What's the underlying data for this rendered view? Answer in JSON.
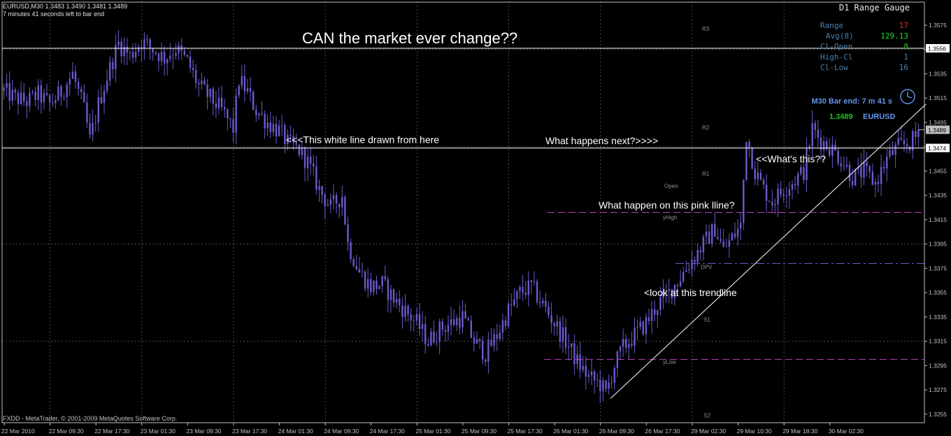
{
  "header": {
    "symbol_line": "EURUSD,M30  1.3483 1.3490 1.3481 1.3489",
    "timer_line": "7 minutes 41 seconds left to bar end"
  },
  "footer": {
    "copyright": "FXDD - MetaTrader, © 2001-2009 MetaQuotes Software Corp."
  },
  "colors": {
    "background": "#000000",
    "candle": "#6a5acd",
    "grid": "#c0c0c0",
    "axis": "#c0c0c0",
    "white_line": "#ffffff",
    "pink_line": "#c040c0",
    "dpv_line": "#6a5acd",
    "price_label_bg": "#ffffff",
    "current_price_bg": "#c0c0c0"
  },
  "gauge": {
    "title": "D1 Range Gauge",
    "rows": [
      {
        "label": "Range",
        "value": "17",
        "color": "#ff2020"
      },
      {
        "label": "Avg(8)",
        "value": "129.13",
        "color": "#20e020"
      },
      {
        "label": "Cl-Open",
        "value": "8",
        "color": "#20d020"
      },
      {
        "label": "High-Cl",
        "value": "1",
        "color": "#4682b4"
      },
      {
        "label": "Cl-Low",
        "value": "16",
        "color": "#4682b4"
      }
    ]
  },
  "bar_info": {
    "bar_end": "M30 Bar end: 7 m 41 s",
    "price": "1.3489",
    "symbol": "EURUSD"
  },
  "chart_data": {
    "type": "candlestick",
    "ylim": [
      1.3248,
      1.3594
    ],
    "y_ticks": [
      1.3575,
      1.3555,
      1.3535,
      1.3515,
      1.3495,
      1.3475,
      1.3455,
      1.3435,
      1.3415,
      1.3395,
      1.3375,
      1.3355,
      1.3335,
      1.3315,
      1.3295,
      1.3275,
      1.3255
    ],
    "x_ticks": [
      "22 Mar 2010",
      "22 Mar 09:30",
      "22 Mar 17:30",
      "23 Mar 01:30",
      "23 Mar 09:30",
      "23 Mar 17:30",
      "24 Mar 01:30",
      "24 Mar 09:30",
      "24 Mar 17:30",
      "25 Mar 01:30",
      "25 Mar 09:30",
      "25 Mar 17:30",
      "26 Mar 01:30",
      "26 Mar 09:30",
      "26 Mar 17:30",
      "29 Mar 02:30",
      "29 Mar 10:30",
      "29 Mar 18:30",
      "30 Mar 02:30"
    ],
    "price_path": [
      [
        0,
        1.3521
      ],
      [
        4,
        1.3515
      ],
      [
        8,
        1.3512
      ],
      [
        12,
        1.3518
      ],
      [
        16,
        1.351
      ],
      [
        20,
        1.352
      ],
      [
        24,
        1.3535
      ],
      [
        28,
        1.3505
      ],
      [
        30,
        1.348
      ],
      [
        33,
        1.351
      ],
      [
        37,
        1.354
      ],
      [
        40,
        1.356
      ],
      [
        44,
        1.355
      ],
      [
        48,
        1.3562
      ],
      [
        52,
        1.3555
      ],
      [
        56,
        1.3548
      ],
      [
        60,
        1.3556
      ],
      [
        64,
        1.3545
      ],
      [
        68,
        1.3525
      ],
      [
        72,
        1.3515
      ],
      [
        76,
        1.3505
      ],
      [
        80,
        1.349
      ],
      [
        82,
        1.353
      ],
      [
        85,
        1.352
      ],
      [
        88,
        1.3505
      ],
      [
        92,
        1.3495
      ],
      [
        96,
        1.3488
      ],
      [
        99,
        1.3478
      ],
      [
        103,
        1.3472
      ],
      [
        106,
        1.3462
      ],
      [
        110,
        1.344
      ],
      [
        114,
        1.3425
      ],
      [
        118,
        1.3435
      ],
      [
        120,
        1.3395
      ],
      [
        124,
        1.3372
      ],
      [
        128,
        1.336
      ],
      [
        132,
        1.3362
      ],
      [
        136,
        1.335
      ],
      [
        140,
        1.334
      ],
      [
        144,
        1.333
      ],
      [
        148,
        1.3315
      ],
      [
        152,
        1.3325
      ],
      [
        156,
        1.333
      ],
      [
        160,
        1.3335
      ],
      [
        164,
        1.3315
      ],
      [
        168,
        1.3305
      ],
      [
        172,
        1.332
      ],
      [
        176,
        1.334
      ],
      [
        180,
        1.3355
      ],
      [
        184,
        1.336
      ],
      [
        188,
        1.3345
      ],
      [
        192,
        1.333
      ],
      [
        196,
        1.3315
      ],
      [
        200,
        1.3298
      ],
      [
        204,
        1.3285
      ],
      [
        208,
        1.328
      ],
      [
        210,
        1.3272
      ],
      [
        213,
        1.3295
      ],
      [
        216,
        1.331
      ],
      [
        220,
        1.332
      ],
      [
        224,
        1.333
      ],
      [
        228,
        1.3345
      ],
      [
        232,
        1.3355
      ],
      [
        236,
        1.3368
      ],
      [
        240,
        1.3382
      ],
      [
        244,
        1.3395
      ],
      [
        248,
        1.3408
      ],
      [
        251,
        1.339
      ],
      [
        254,
        1.34
      ],
      [
        257,
        1.341
      ],
      [
        259,
        1.3485
      ],
      [
        262,
        1.3455
      ],
      [
        265,
        1.344
      ],
      [
        268,
        1.343
      ],
      [
        272,
        1.344
      ],
      [
        276,
        1.3448
      ],
      [
        279,
        1.3455
      ],
      [
        282,
        1.349
      ],
      [
        285,
        1.348
      ],
      [
        288,
        1.3475
      ],
      [
        292,
        1.3465
      ],
      [
        296,
        1.345
      ],
      [
        300,
        1.3455
      ],
      [
        304,
        1.3445
      ],
      [
        308,
        1.3465
      ],
      [
        312,
        1.3475
      ],
      [
        316,
        1.3478
      ],
      [
        319,
        1.3485
      ]
    ],
    "horizontal_lines": [
      {
        "name": "white-line-upper",
        "price": 1.3556,
        "label": "1.3556",
        "style": "solid",
        "color": "#ffffff"
      },
      {
        "name": "white-line-lower",
        "price": 1.3474,
        "label": "1.3474",
        "style": "solid",
        "color": "#ffffff"
      },
      {
        "name": "pink-line-yhigh",
        "price": 1.3421,
        "style": "dashed",
        "color": "#c040c0"
      },
      {
        "name": "pink-line-ylow",
        "price": 1.33,
        "style": "dashed",
        "color": "#c040c0"
      },
      {
        "name": "dpv-line",
        "price": 1.3379,
        "style": "dashdot",
        "color": "#6a5acd"
      }
    ],
    "current_price": {
      "price": 1.3489,
      "label": "1.3489"
    },
    "trendline": {
      "from": [
        212,
        1.3268
      ],
      "to": [
        322,
        1.351
      ]
    },
    "pivot_labels": [
      {
        "text": "R3",
        "price": 1.3572
      },
      {
        "text": "R2",
        "price": 1.3491
      },
      {
        "text": "R1",
        "price": 1.3453
      },
      {
        "text": "Open",
        "price": 1.3443
      },
      {
        "text": "yHigh",
        "price": 1.3417
      },
      {
        "text": "DPV",
        "price": 1.3376
      },
      {
        "text": "S1",
        "price": 1.3333
      },
      {
        "text": "yLow",
        "price": 1.3298
      },
      {
        "text": "S2",
        "price": 1.3254
      }
    ],
    "annotations": [
      {
        "text": "CAN the market ever change??",
        "size": "large",
        "price": 1.356
      },
      {
        "text": "<<<This white line drawn from here",
        "price": 1.3481
      },
      {
        "text": "What happens next?>>>>",
        "price": 1.348
      },
      {
        "text": "<<What's this??",
        "price": 1.3465
      },
      {
        "text": "What happen on this pink lline?",
        "price": 1.3427
      },
      {
        "text": "<look at this trendline",
        "price": 1.3355
      }
    ]
  }
}
